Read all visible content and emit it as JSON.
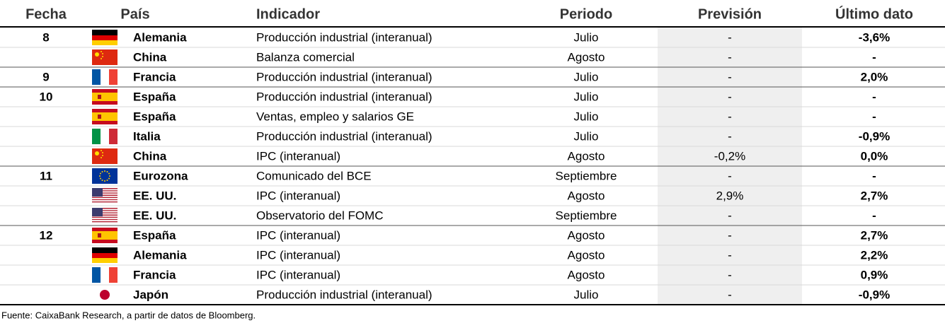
{
  "table": {
    "headers": [
      "Fecha",
      "País",
      "Indicador",
      "Periodo",
      "Previsión",
      "Último dato"
    ],
    "rows": [
      [
        "8",
        "Alemania",
        "Producción industrial (interanual)",
        "Julio",
        "-",
        "-3,6%"
      ],
      [
        null,
        "China",
        "Balanza comercial",
        "Agosto",
        "-",
        "-"
      ],
      [
        "9",
        "Francia",
        "Producción industrial (interanual)",
        "Julio",
        "-",
        "2,0%"
      ],
      [
        "10",
        "España",
        "Producción industrial (interanual)",
        "Julio",
        "-",
        "-"
      ],
      [
        null,
        "España",
        "Ventas, empleo y salarios GE",
        "Julio",
        "-",
        "-"
      ],
      [
        null,
        "Italia",
        "Producción industrial (interanual)",
        "Julio",
        "-",
        "-0,9%"
      ],
      [
        null,
        "China",
        "IPC (interanual)",
        "Agosto",
        "-0,2%",
        "0,0%"
      ],
      [
        "11",
        "Eurozona",
        "Comunicado del BCE",
        "Septiembre",
        "-",
        "-"
      ],
      [
        null,
        "EE. UU.",
        "IPC (interanual)",
        "Agosto",
        "2,9%",
        "2,7%"
      ],
      [
        null,
        "EE. UU.",
        "Observatorio del FOMC",
        "Septiembre",
        "-",
        "-"
      ],
      [
        "12",
        "España",
        "IPC (interanual)",
        "Agosto",
        "-",
        "2,7%"
      ],
      [
        null,
        "Alemania",
        "IPC (interanual)",
        "Agosto",
        "-",
        "2,2%"
      ],
      [
        null,
        "Francia",
        "IPC (interanual)",
        "Agosto",
        "-",
        "0,9%"
      ],
      [
        null,
        "Japón",
        "Producción industrial (interanual)",
        "Julio",
        "-",
        "-0,9%"
      ]
    ]
  },
  "footer": "Fuente: CaixaBank Research, a partir de datos de Bloomberg."
}
